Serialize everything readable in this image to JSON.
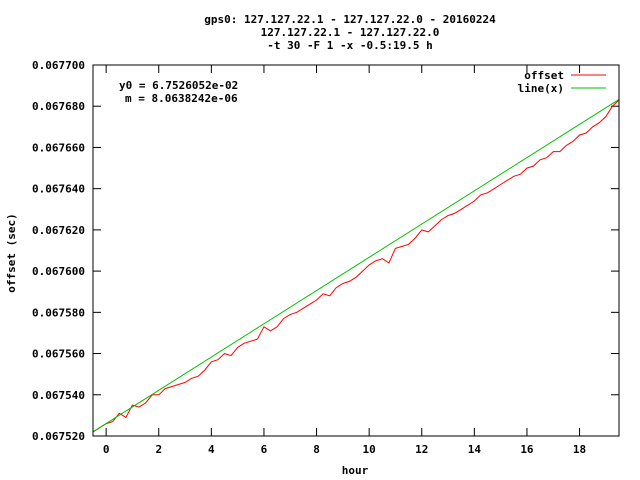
{
  "chart_data": {
    "type": "line",
    "title_lines": [
      "gps0: 127.127.22.1 - 127.127.22.0 - 20160224",
      "127.127.22.1 - 127.127.22.0",
      "-t 30 -F 1 -x -0.5:19.5 h"
    ],
    "xlabel": "hour",
    "ylabel": "offset (sec)",
    "xlim": [
      -0.5,
      19.5
    ],
    "ylim": [
      0.06752,
      0.0677
    ],
    "x_ticks": [
      0,
      2,
      4,
      6,
      8,
      10,
      12,
      14,
      16,
      18
    ],
    "y_ticks": [
      "0.067520",
      "0.067540",
      "0.067560",
      "0.067580",
      "0.067600",
      "0.067620",
      "0.067640",
      "0.067660",
      "0.067680",
      "0.067700"
    ],
    "annotations": [
      "y0 = 6.7526052e-02",
      "m = 8.0638242e-06"
    ],
    "legend_position": "top-right",
    "grid": false,
    "series": [
      {
        "name": "offset",
        "color": "#ff0000",
        "x": [
          -0.5,
          -0.25,
          0.0,
          0.25,
          0.5,
          0.75,
          1.0,
          1.25,
          1.5,
          1.75,
          2.0,
          2.25,
          2.5,
          2.75,
          3.0,
          3.25,
          3.5,
          3.75,
          4.0,
          4.25,
          4.5,
          4.75,
          5.0,
          5.25,
          5.5,
          5.75,
          6.0,
          6.25,
          6.5,
          6.75,
          7.0,
          7.25,
          7.5,
          7.75,
          8.0,
          8.25,
          8.5,
          8.75,
          9.0,
          9.25,
          9.5,
          9.75,
          10.0,
          10.25,
          10.5,
          10.75,
          11.0,
          11.25,
          11.5,
          11.75,
          12.0,
          12.25,
          12.5,
          12.75,
          13.0,
          13.25,
          13.5,
          13.75,
          14.0,
          14.25,
          14.5,
          14.75,
          15.0,
          15.25,
          15.5,
          15.75,
          16.0,
          16.25,
          16.5,
          16.75,
          17.0,
          17.25,
          17.5,
          17.75,
          18.0,
          18.25,
          18.5,
          18.75,
          19.0,
          19.25,
          19.5
        ],
        "y": [
          0.067522,
          0.067524,
          0.067526,
          0.067527,
          0.067531,
          0.067529,
          0.067535,
          0.067534,
          0.067536,
          0.06754,
          0.06754,
          0.067543,
          0.067544,
          0.067545,
          0.067546,
          0.067548,
          0.067549,
          0.067552,
          0.067556,
          0.067557,
          0.06756,
          0.067559,
          0.067563,
          0.067565,
          0.067566,
          0.067567,
          0.067573,
          0.067571,
          0.067573,
          0.067577,
          0.067579,
          0.06758,
          0.067582,
          0.067584,
          0.067586,
          0.067589,
          0.067588,
          0.067592,
          0.067594,
          0.067595,
          0.067597,
          0.0676,
          0.067603,
          0.067605,
          0.067606,
          0.067604,
          0.067611,
          0.067612,
          0.067613,
          0.067616,
          0.06762,
          0.067619,
          0.067622,
          0.067625,
          0.067627,
          0.067628,
          0.06763,
          0.067632,
          0.067634,
          0.067637,
          0.067638,
          0.06764,
          0.067642,
          0.067644,
          0.067646,
          0.067647,
          0.06765,
          0.067651,
          0.067654,
          0.067655,
          0.067658,
          0.067658,
          0.067661,
          0.067663,
          0.067666,
          0.067667,
          0.06767,
          0.067672,
          0.067675,
          0.06768,
          0.067683
        ]
      },
      {
        "name": "line(x)",
        "color": "#00c000",
        "formula": "y0 + m * x",
        "y0": 0.067526052,
        "m": 8.0638242e-06
      }
    ]
  }
}
